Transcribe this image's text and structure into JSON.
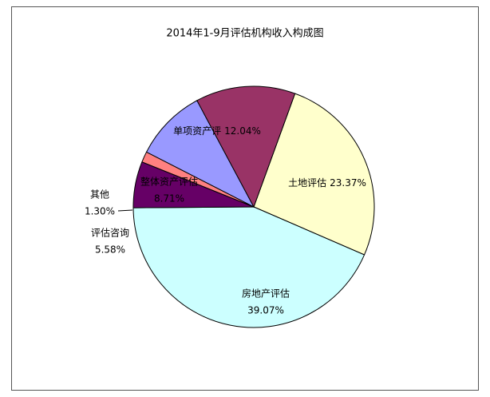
{
  "chart_data": {
    "type": "pie",
    "title": "2014年1-9月评估机构收入构成图",
    "categories": [
      "土地评估",
      "房地产评估",
      "评估咨询",
      "其他",
      "整体资产评估",
      "单项资产评"
    ],
    "values": [
      23.37,
      39.07,
      5.58,
      1.3,
      8.71,
      12.04
    ],
    "value_labels": [
      "23.37%",
      "39.07%",
      "5.58%",
      "1.30%",
      "8.71%",
      "12.04%"
    ],
    "colors": [
      "#ffffcc",
      "#ccffff",
      "#660066",
      "#ff8080",
      "#9999ff",
      "#993366"
    ]
  }
}
